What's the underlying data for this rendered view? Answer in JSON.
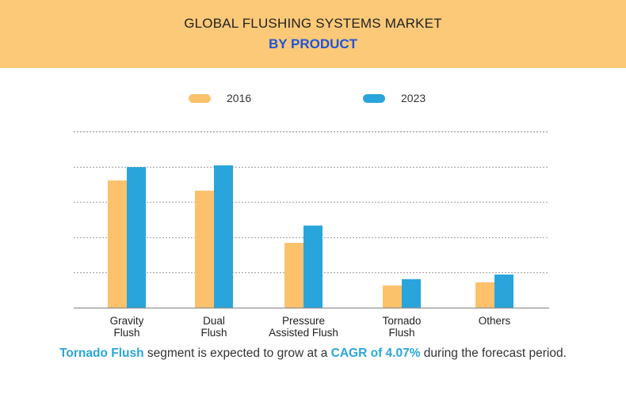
{
  "header": {
    "title": "GLOBAL FLUSHING SYSTEMS MARKET",
    "subtitle": "BY PRODUCT"
  },
  "chart_data": {
    "type": "bar",
    "categories": [
      "Gravity Flush",
      "Dual Flush",
      "Pressure Assisted Flush",
      "Tornado Flush",
      "Others"
    ],
    "category_lines": [
      [
        "Gravity",
        "Flush"
      ],
      [
        "Dual",
        "Flush"
      ],
      [
        "Pressure",
        "Assisted Flush"
      ],
      [
        "Tornado",
        "Flush"
      ],
      [
        "Others",
        ""
      ]
    ],
    "series": [
      {
        "name": "2016",
        "color": "#fbc16b",
        "values": [
          3.62,
          3.33,
          1.85,
          0.64,
          0.73
        ]
      },
      {
        "name": "2023",
        "color": "#29a5db",
        "values": [
          4.0,
          4.05,
          2.34,
          0.82,
          0.95
        ]
      }
    ],
    "ylim": [
      0,
      5
    ],
    "y_tick_labels": "none",
    "grid": true,
    "legend": "top"
  },
  "footer": {
    "highlight1": "Tornado Flush",
    "text1": " segment is expected to grow at a ",
    "highlight2": "CAGR of 4.07%",
    "text2": " during the forecast period."
  }
}
